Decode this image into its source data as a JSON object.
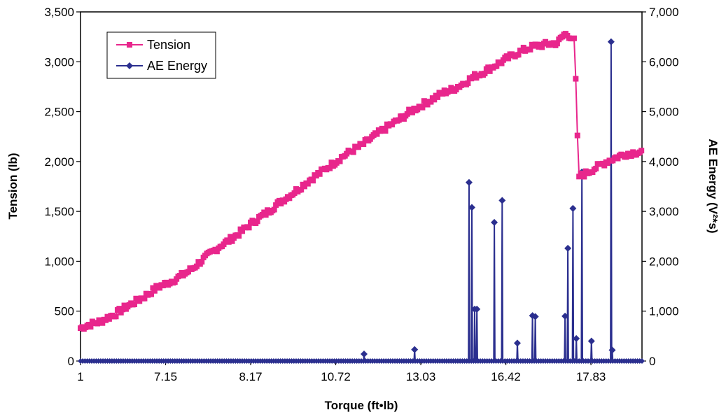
{
  "chart_data": {
    "type": "line",
    "xlabel": "Torque (ft•lb)",
    "ylabel": "Tension (lb)",
    "y2label": "AE Energy (V²*s)",
    "x_tick_labels": [
      "1",
      "7.15",
      "8.17",
      "10.72",
      "13.03",
      "16.42",
      "17.83"
    ],
    "xlim": [
      0,
      1000
    ],
    "ylim": [
      0,
      3500
    ],
    "y2lim": [
      0,
      7000
    ],
    "y_ticks": [
      "0",
      "500",
      "1,000",
      "1,500",
      "2,000",
      "2,500",
      "3,000",
      "3,500"
    ],
    "y2_ticks": [
      "0",
      "1,000",
      "2,000",
      "3,000",
      "4,000",
      "5,000",
      "6,000",
      "7,000"
    ],
    "grid": false,
    "legend_position": "top-left",
    "colors": {
      "tension": "#e8268c",
      "ae_energy": "#2b2f8f"
    },
    "series": [
      {
        "name": "Tension",
        "axis": "left",
        "marker": "square",
        "x": [
          0,
          12,
          25,
          37,
          50,
          62,
          75,
          87,
          100,
          112,
          125,
          137,
          150,
          162,
          175,
          187,
          200,
          212,
          225,
          237,
          250,
          262,
          275,
          287,
          300,
          312,
          325,
          337,
          350,
          362,
          375,
          387,
          400,
          412,
          425,
          437,
          450,
          462,
          475,
          487,
          500,
          512,
          525,
          537,
          550,
          562,
          575,
          587,
          600,
          612,
          625,
          637,
          650,
          662,
          675,
          687,
          700,
          712,
          725,
          737,
          750,
          762,
          775,
          787,
          800,
          812,
          825,
          837,
          850,
          862,
          875,
          880,
          887,
          900,
          912,
          925,
          937,
          950,
          962,
          975,
          987,
          1000
        ],
        "values": [
          330,
          360,
          380,
          400,
          440,
          470,
          520,
          560,
          600,
          640,
          690,
          740,
          770,
          800,
          840,
          880,
          930,
          990,
          1050,
          1100,
          1160,
          1200,
          1250,
          1300,
          1360,
          1410,
          1460,
          1510,
          1570,
          1620,
          1670,
          1720,
          1780,
          1830,
          1880,
          1930,
          1980,
          2030,
          2080,
          2120,
          2160,
          2210,
          2260,
          2310,
          2360,
          2400,
          2450,
          2500,
          2540,
          2580,
          2620,
          2660,
          2700,
          2720,
          2760,
          2800,
          2850,
          2880,
          2920,
          2960,
          3000,
          3040,
          3080,
          3110,
          3140,
          3160,
          3170,
          3180,
          3190,
          3280,
          3250,
          3200,
          1850,
          1880,
          1920,
          1960,
          2000,
          2030,
          2060,
          2080,
          2090,
          2100
        ]
      },
      {
        "name": "AE Energy",
        "axis": "right",
        "marker": "diamond",
        "x": [
          0,
          500,
          502,
          504,
          506,
          595,
          597,
          599,
          688,
          690,
          692,
          694,
          696,
          698,
          700,
          702,
          704,
          706,
          708,
          718,
          720,
          722,
          735,
          737,
          739,
          755,
          757,
          759,
          777,
          779,
          781,
          783,
          785,
          787,
          858,
          860,
          862,
          864,
          866,
          868,
          870,
          872,
          874,
          876,
          878,
          880,
          882,
          884,
          886,
          888,
          900,
          902,
          904,
          906,
          908,
          910,
          935,
          937,
          939,
          941,
          943,
          945,
          947,
          949,
          951,
          953,
          955,
          957,
          960,
          962,
          964,
          1000
        ],
        "values": [
          0,
          0,
          0,
          0,
          0,
          0,
          0,
          0,
          0,
          0,
          0,
          0,
          0,
          0,
          0,
          0,
          0,
          0,
          0,
          0,
          0,
          0,
          0,
          0,
          0,
          0,
          0,
          0,
          0,
          0,
          0,
          0,
          0,
          0,
          0,
          0,
          0,
          0,
          0,
          0,
          0,
          0,
          0,
          0,
          0,
          0,
          0,
          0,
          0,
          0,
          0,
          0,
          0,
          0,
          0,
          0,
          0,
          0,
          0,
          0,
          0,
          0,
          0,
          0,
          0,
          0,
          0,
          0,
          0,
          0,
          0,
          0
        ],
        "spikes": [
          {
            "x": 505,
            "value": 140
          },
          {
            "x": 595,
            "value": 230
          },
          {
            "x": 692,
            "value": 3580
          },
          {
            "x": 697,
            "value": 3080
          },
          {
            "x": 702,
            "value": 1040
          },
          {
            "x": 706,
            "value": 1040
          },
          {
            "x": 737,
            "value": 2780
          },
          {
            "x": 751,
            "value": 3220
          },
          {
            "x": 778,
            "value": 360
          },
          {
            "x": 805,
            "value": 910
          },
          {
            "x": 810,
            "value": 890
          },
          {
            "x": 863,
            "value": 900
          },
          {
            "x": 868,
            "value": 2260
          },
          {
            "x": 877,
            "value": 3060
          },
          {
            "x": 883,
            "value": 450
          },
          {
            "x": 893,
            "value": 3790
          },
          {
            "x": 910,
            "value": 400
          },
          {
            "x": 945,
            "value": 6400
          },
          {
            "x": 947,
            "value": 220
          }
        ]
      }
    ]
  }
}
